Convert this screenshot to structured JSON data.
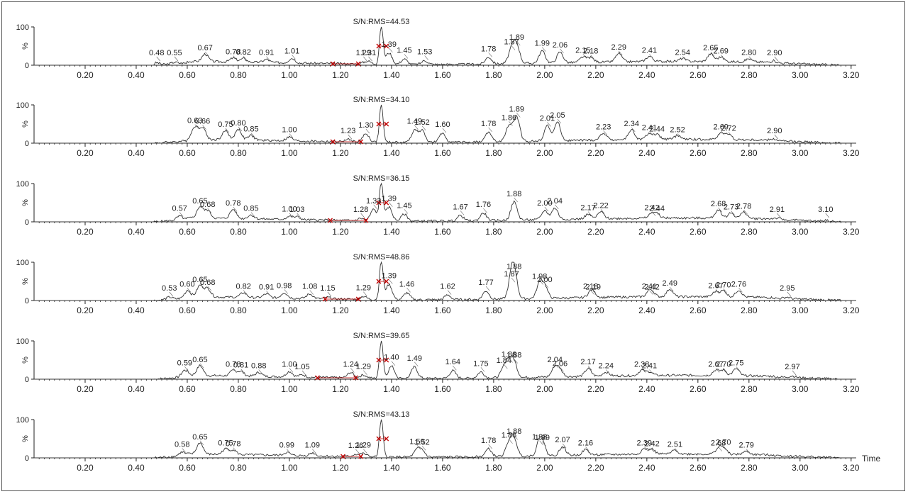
{
  "chart_data": [
    {
      "type": "line",
      "title": "S/N:RMS=44.53",
      "xlabel": "",
      "ylabel": "%",
      "ylim": [
        0,
        100
      ],
      "xlim": [
        0.0,
        3.22
      ],
      "x_ticks": [
        0.2,
        0.4,
        0.6,
        0.8,
        1.0,
        1.2,
        1.4,
        1.6,
        1.8,
        2.0,
        2.2,
        2.4,
        2.6,
        2.8,
        3.0,
        3.2
      ],
      "x_tick_labels": [
        "0.20",
        "0.40",
        "0.60",
        "0.80",
        "1.00",
        "1.20",
        "1.40",
        "1.60",
        "1.80",
        "2.00",
        "2.20",
        "2.40",
        "2.60",
        "2.80",
        "3.00",
        "3.20"
      ],
      "y_tick_labels": [
        "100",
        "0"
      ],
      "noise_markers": [
        1.17,
        1.27
      ],
      "signal_markers": [
        1.35,
        1.38
      ],
      "peaks": [
        {
          "x": 0.48,
          "y": 6,
          "label": "0.48"
        },
        {
          "x": 0.55,
          "y": 4,
          "label": "0.55"
        },
        {
          "x": 0.67,
          "y": 20,
          "label": "0.67"
        },
        {
          "x": 0.78,
          "y": 10,
          "label": "0.78"
        },
        {
          "x": 0.82,
          "y": 9,
          "label": "0.82"
        },
        {
          "x": 0.91,
          "y": 8,
          "label": "0.91"
        },
        {
          "x": 1.01,
          "y": 12,
          "label": "1.01"
        },
        {
          "x": 1.29,
          "y": 3,
          "label": "1.29"
        },
        {
          "x": 1.31,
          "y": 7,
          "label": "1.31"
        },
        {
          "x": 1.36,
          "y": 100,
          "label": ""
        },
        {
          "x": 1.39,
          "y": 30,
          "label": "1.39"
        },
        {
          "x": 1.45,
          "y": 14,
          "label": "1.45"
        },
        {
          "x": 1.53,
          "y": 10,
          "label": "1.53"
        },
        {
          "x": 1.78,
          "y": 18,
          "label": "1.78"
        },
        {
          "x": 1.87,
          "y": 36,
          "label": "1.87"
        },
        {
          "x": 1.89,
          "y": 48,
          "label": "1.89"
        },
        {
          "x": 1.99,
          "y": 32,
          "label": "1.99"
        },
        {
          "x": 2.06,
          "y": 28,
          "label": "2.06"
        },
        {
          "x": 2.15,
          "y": 14,
          "label": "2.15"
        },
        {
          "x": 2.18,
          "y": 12,
          "label": "2.18"
        },
        {
          "x": 2.29,
          "y": 22,
          "label": "2.29"
        },
        {
          "x": 2.41,
          "y": 14,
          "label": "2.41"
        },
        {
          "x": 2.54,
          "y": 8,
          "label": "2.54"
        },
        {
          "x": 2.65,
          "y": 20,
          "label": "2.65"
        },
        {
          "x": 2.69,
          "y": 12,
          "label": "2.69"
        },
        {
          "x": 2.8,
          "y": 8,
          "label": "2.80"
        },
        {
          "x": 2.9,
          "y": 4,
          "label": "2.90"
        }
      ]
    },
    {
      "type": "line",
      "title": "S/N:RMS=34.10",
      "xlabel": "",
      "ylabel": "%",
      "ylim": [
        0,
        100
      ],
      "xlim": [
        0.0,
        3.22
      ],
      "x_ticks": [
        0.2,
        0.4,
        0.6,
        0.8,
        1.0,
        1.2,
        1.4,
        1.6,
        1.8,
        2.0,
        2.2,
        2.4,
        2.6,
        2.8,
        3.0,
        3.2
      ],
      "x_tick_labels": [
        "0.20",
        "0.40",
        "0.60",
        "0.80",
        "1.00",
        "1.20",
        "1.40",
        "1.60",
        "1.80",
        "2.00",
        "2.20",
        "2.40",
        "2.60",
        "2.80",
        "3.00",
        "3.20"
      ],
      "y_tick_labels": [
        "100",
        "0"
      ],
      "noise_markers": [
        1.17,
        1.28
      ],
      "signal_markers": [
        1.35,
        1.38
      ],
      "peaks": [
        {
          "x": 0.63,
          "y": 34,
          "label": "0.63"
        },
        {
          "x": 0.66,
          "y": 32,
          "label": "0.66"
        },
        {
          "x": 0.75,
          "y": 24,
          "label": "0.75"
        },
        {
          "x": 0.8,
          "y": 28,
          "label": "0.80"
        },
        {
          "x": 0.85,
          "y": 12,
          "label": "0.85"
        },
        {
          "x": 1.0,
          "y": 10,
          "label": "1.00"
        },
        {
          "x": 1.23,
          "y": 6,
          "label": "1.23"
        },
        {
          "x": 1.3,
          "y": 22,
          "label": "1.30"
        },
        {
          "x": 1.36,
          "y": 100,
          "label": ""
        },
        {
          "x": 1.49,
          "y": 32,
          "label": "1.49"
        },
        {
          "x": 1.52,
          "y": 30,
          "label": "1.52"
        },
        {
          "x": 1.6,
          "y": 24,
          "label": "1.60"
        },
        {
          "x": 1.78,
          "y": 26,
          "label": "1.78"
        },
        {
          "x": 1.86,
          "y": 42,
          "label": "1.86"
        },
        {
          "x": 1.89,
          "y": 64,
          "label": "1.89"
        },
        {
          "x": 2.01,
          "y": 40,
          "label": "2.01"
        },
        {
          "x": 2.05,
          "y": 48,
          "label": "2.05"
        },
        {
          "x": 2.23,
          "y": 18,
          "label": "2.23"
        },
        {
          "x": 2.34,
          "y": 26,
          "label": "2.34"
        },
        {
          "x": 2.41,
          "y": 16,
          "label": "2.41"
        },
        {
          "x": 2.44,
          "y": 12,
          "label": "2.44"
        },
        {
          "x": 2.52,
          "y": 10,
          "label": "2.52"
        },
        {
          "x": 2.69,
          "y": 18,
          "label": "2.69"
        },
        {
          "x": 2.72,
          "y": 14,
          "label": "2.72"
        },
        {
          "x": 2.9,
          "y": 4,
          "label": "2.90"
        }
      ]
    },
    {
      "type": "line",
      "title": "S/N:RMS=36.15",
      "xlabel": "",
      "ylabel": "%",
      "ylim": [
        0,
        100
      ],
      "xlim": [
        0.0,
        3.22
      ],
      "x_ticks": [
        0.2,
        0.4,
        0.6,
        0.8,
        1.0,
        1.2,
        1.4,
        1.6,
        1.8,
        2.0,
        2.2,
        2.4,
        2.6,
        2.8,
        3.0,
        3.2
      ],
      "x_tick_labels": [
        "0.20",
        "0.40",
        "0.60",
        "0.80",
        "1.00",
        "1.20",
        "1.40",
        "1.60",
        "1.80",
        "2.00",
        "2.20",
        "2.40",
        "2.60",
        "2.80",
        "3.00",
        "3.20"
      ],
      "y_tick_labels": [
        "100",
        "0"
      ],
      "noise_markers": [
        1.16,
        1.3
      ],
      "signal_markers": [
        1.35,
        1.38
      ],
      "peaks": [
        {
          "x": 0.57,
          "y": 10,
          "label": "0.57"
        },
        {
          "x": 0.65,
          "y": 30,
          "label": "0.65"
        },
        {
          "x": 0.68,
          "y": 20,
          "label": "0.68"
        },
        {
          "x": 0.78,
          "y": 24,
          "label": "0.78"
        },
        {
          "x": 0.85,
          "y": 10,
          "label": "0.85"
        },
        {
          "x": 1.0,
          "y": 8,
          "label": "1.00"
        },
        {
          "x": 1.03,
          "y": 7,
          "label": "1.03"
        },
        {
          "x": 1.28,
          "y": 6,
          "label": "1.28"
        },
        {
          "x": 1.33,
          "y": 30,
          "label": "1.33"
        },
        {
          "x": 1.36,
          "y": 100,
          "label": ""
        },
        {
          "x": 1.39,
          "y": 36,
          "label": "1.39"
        },
        {
          "x": 1.45,
          "y": 18,
          "label": "1.45"
        },
        {
          "x": 1.67,
          "y": 14,
          "label": "1.67"
        },
        {
          "x": 1.76,
          "y": 20,
          "label": "1.76"
        },
        {
          "x": 1.88,
          "y": 48,
          "label": "1.88"
        },
        {
          "x": 2.0,
          "y": 24,
          "label": "2.00"
        },
        {
          "x": 2.04,
          "y": 30,
          "label": "2.04"
        },
        {
          "x": 2.17,
          "y": 12,
          "label": "2.17"
        },
        {
          "x": 2.22,
          "y": 18,
          "label": "2.22"
        },
        {
          "x": 2.42,
          "y": 12,
          "label": "2.42"
        },
        {
          "x": 2.44,
          "y": 10,
          "label": "2.44"
        },
        {
          "x": 2.68,
          "y": 22,
          "label": "2.68"
        },
        {
          "x": 2.73,
          "y": 14,
          "label": "2.73"
        },
        {
          "x": 2.78,
          "y": 16,
          "label": "2.78"
        },
        {
          "x": 2.91,
          "y": 4,
          "label": "2.91"
        },
        {
          "x": 3.1,
          "y": 3,
          "label": "3.10"
        }
      ]
    },
    {
      "type": "line",
      "title": "S/N:RMS=48.86",
      "xlabel": "",
      "ylabel": "%",
      "ylim": [
        0,
        100
      ],
      "xlim": [
        0.0,
        3.22
      ],
      "x_ticks": [
        0.2,
        0.4,
        0.6,
        0.8,
        1.0,
        1.2,
        1.4,
        1.6,
        1.8,
        2.0,
        2.2,
        2.4,
        2.6,
        2.8,
        3.0,
        3.2
      ],
      "x_tick_labels": [
        "0.20",
        "0.40",
        "0.60",
        "0.80",
        "1.00",
        "1.20",
        "1.40",
        "1.60",
        "1.80",
        "2.00",
        "2.20",
        "2.40",
        "2.60",
        "2.80",
        "3.00",
        "3.20"
      ],
      "y_tick_labels": [
        "100",
        "0"
      ],
      "noise_markers": [
        1.14,
        1.27
      ],
      "signal_markers": [
        1.35,
        1.38
      ],
      "peaks": [
        {
          "x": 0.53,
          "y": 6,
          "label": "0.53"
        },
        {
          "x": 0.6,
          "y": 18,
          "label": "0.60"
        },
        {
          "x": 0.65,
          "y": 30,
          "label": "0.65"
        },
        {
          "x": 0.68,
          "y": 22,
          "label": "0.68"
        },
        {
          "x": 0.82,
          "y": 12,
          "label": "0.82"
        },
        {
          "x": 0.91,
          "y": 10,
          "label": "0.91"
        },
        {
          "x": 0.98,
          "y": 14,
          "label": "0.98"
        },
        {
          "x": 1.08,
          "y": 12,
          "label": "1.08"
        },
        {
          "x": 1.15,
          "y": 4,
          "label": "1.15"
        },
        {
          "x": 1.29,
          "y": 8,
          "label": "1.29"
        },
        {
          "x": 1.36,
          "y": 100,
          "label": ""
        },
        {
          "x": 1.39,
          "y": 40,
          "label": "1.39"
        },
        {
          "x": 1.46,
          "y": 18,
          "label": "1.46"
        },
        {
          "x": 1.62,
          "y": 12,
          "label": "1.62"
        },
        {
          "x": 1.77,
          "y": 22,
          "label": "1.77"
        },
        {
          "x": 1.87,
          "y": 44,
          "label": "1.87"
        },
        {
          "x": 1.88,
          "y": 64,
          "label": "1.88"
        },
        {
          "x": 1.98,
          "y": 38,
          "label": "1.98"
        },
        {
          "x": 2.0,
          "y": 30,
          "label": "2.00"
        },
        {
          "x": 2.18,
          "y": 12,
          "label": "2.18"
        },
        {
          "x": 2.19,
          "y": 10,
          "label": "2.19"
        },
        {
          "x": 2.41,
          "y": 12,
          "label": "2.41"
        },
        {
          "x": 2.42,
          "y": 10,
          "label": "2.42"
        },
        {
          "x": 2.49,
          "y": 20,
          "label": "2.49"
        },
        {
          "x": 2.67,
          "y": 14,
          "label": "2.67"
        },
        {
          "x": 2.7,
          "y": 16,
          "label": "2.70"
        },
        {
          "x": 2.76,
          "y": 18,
          "label": "2.76"
        },
        {
          "x": 2.95,
          "y": 4,
          "label": "2.95"
        }
      ]
    },
    {
      "type": "line",
      "title": "S/N:RMS=39.65",
      "xlabel": "",
      "ylabel": "%",
      "ylim": [
        0,
        100
      ],
      "xlim": [
        0.0,
        3.22
      ],
      "x_ticks": [
        0.2,
        0.4,
        0.6,
        0.8,
        1.0,
        1.2,
        1.4,
        1.6,
        1.8,
        2.0,
        2.2,
        2.4,
        2.6,
        2.8,
        3.0,
        3.2
      ],
      "x_tick_labels": [
        "0.20",
        "0.40",
        "0.60",
        "0.80",
        "1.00",
        "1.20",
        "1.40",
        "1.60",
        "1.80",
        "2.00",
        "2.20",
        "2.40",
        "2.60",
        "2.80",
        "3.00",
        "3.20"
      ],
      "y_tick_labels": [
        "100",
        "0"
      ],
      "noise_markers": [
        1.11,
        1.26
      ],
      "signal_markers": [
        1.35,
        1.38
      ],
      "peaks": [
        {
          "x": 0.59,
          "y": 18,
          "label": "0.59"
        },
        {
          "x": 0.65,
          "y": 26,
          "label": "0.65"
        },
        {
          "x": 0.78,
          "y": 14,
          "label": "0.78"
        },
        {
          "x": 0.81,
          "y": 12,
          "label": "0.81"
        },
        {
          "x": 0.88,
          "y": 10,
          "label": "0.88"
        },
        {
          "x": 1.0,
          "y": 14,
          "label": "1.00"
        },
        {
          "x": 1.05,
          "y": 6,
          "label": "1.05"
        },
        {
          "x": 1.24,
          "y": 14,
          "label": "1.24"
        },
        {
          "x": 1.29,
          "y": 8,
          "label": "1.29"
        },
        {
          "x": 1.36,
          "y": 100,
          "label": ""
        },
        {
          "x": 1.4,
          "y": 32,
          "label": "1.40"
        },
        {
          "x": 1.49,
          "y": 30,
          "label": "1.49"
        },
        {
          "x": 1.64,
          "y": 20,
          "label": "1.64"
        },
        {
          "x": 1.75,
          "y": 16,
          "label": "1.75"
        },
        {
          "x": 1.84,
          "y": 24,
          "label": "1.84"
        },
        {
          "x": 1.86,
          "y": 40,
          "label": "1.86"
        },
        {
          "x": 1.88,
          "y": 38,
          "label": "1.88"
        },
        {
          "x": 2.04,
          "y": 26,
          "label": "2.04"
        },
        {
          "x": 2.06,
          "y": 16,
          "label": "2.06"
        },
        {
          "x": 2.17,
          "y": 20,
          "label": "2.17"
        },
        {
          "x": 2.24,
          "y": 10,
          "label": "2.24"
        },
        {
          "x": 2.38,
          "y": 14,
          "label": "2.38"
        },
        {
          "x": 2.41,
          "y": 10,
          "label": "2.41"
        },
        {
          "x": 2.67,
          "y": 14,
          "label": "2.67"
        },
        {
          "x": 2.7,
          "y": 14,
          "label": "2.70"
        },
        {
          "x": 2.75,
          "y": 18,
          "label": "2.75"
        },
        {
          "x": 2.97,
          "y": 4,
          "label": "2.97"
        }
      ]
    },
    {
      "type": "line",
      "title": "S/N:RMS=43.13",
      "xlabel": "Time",
      "ylabel": "%",
      "ylim": [
        0,
        100
      ],
      "xlim": [
        0.0,
        3.22
      ],
      "x_ticks": [
        0.2,
        0.4,
        0.6,
        0.8,
        1.0,
        1.2,
        1.4,
        1.6,
        1.8,
        2.0,
        2.2,
        2.4,
        2.6,
        2.8,
        3.0,
        3.2
      ],
      "x_tick_labels": [
        "0.20",
        "0.40",
        "0.60",
        "0.80",
        "1.00",
        "1.20",
        "1.40",
        "1.60",
        "1.80",
        "2.00",
        "2.20",
        "2.40",
        "2.60",
        "2.80",
        "3.00",
        "3.20"
      ],
      "y_tick_labels": [
        "100",
        "0"
      ],
      "noise_markers": [
        1.21,
        1.28
      ],
      "signal_markers": [
        1.35,
        1.38
      ],
      "peaks": [
        {
          "x": 0.58,
          "y": 10,
          "label": "0.58"
        },
        {
          "x": 0.65,
          "y": 30,
          "label": "0.65"
        },
        {
          "x": 0.75,
          "y": 14,
          "label": "0.75"
        },
        {
          "x": 0.78,
          "y": 12,
          "label": "0.78"
        },
        {
          "x": 0.99,
          "y": 8,
          "label": "0.99"
        },
        {
          "x": 1.09,
          "y": 8,
          "label": "1.09"
        },
        {
          "x": 1.26,
          "y": 6,
          "label": "1.26"
        },
        {
          "x": 1.29,
          "y": 8,
          "label": "1.29"
        },
        {
          "x": 1.36,
          "y": 100,
          "label": ""
        },
        {
          "x": 1.5,
          "y": 18,
          "label": "1.50"
        },
        {
          "x": 1.52,
          "y": 16,
          "label": "1.52"
        },
        {
          "x": 1.78,
          "y": 20,
          "label": "1.78"
        },
        {
          "x": 1.86,
          "y": 34,
          "label": "1.86"
        },
        {
          "x": 1.88,
          "y": 44,
          "label": "1.88"
        },
        {
          "x": 1.98,
          "y": 30,
          "label": "1.98"
        },
        {
          "x": 1.99,
          "y": 28,
          "label": "1.99"
        },
        {
          "x": 2.07,
          "y": 22,
          "label": "2.07"
        },
        {
          "x": 2.16,
          "y": 14,
          "label": "2.16"
        },
        {
          "x": 2.39,
          "y": 14,
          "label": "2.39"
        },
        {
          "x": 2.42,
          "y": 12,
          "label": "2.42"
        },
        {
          "x": 2.51,
          "y": 10,
          "label": "2.51"
        },
        {
          "x": 2.68,
          "y": 14,
          "label": "2.68"
        },
        {
          "x": 2.7,
          "y": 16,
          "label": "2.70"
        },
        {
          "x": 2.79,
          "y": 8,
          "label": "2.79"
        }
      ]
    }
  ]
}
